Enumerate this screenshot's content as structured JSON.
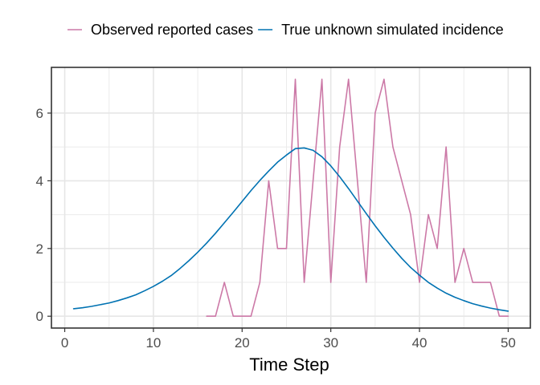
{
  "chart_data": {
    "type": "line",
    "title": "",
    "xlabel": "Time Step",
    "ylabel": "",
    "xlim": [
      -1.5,
      52.5
    ],
    "ylim": [
      -0.35,
      7.35
    ],
    "x_ticks": [
      0,
      10,
      20,
      30,
      40,
      50
    ],
    "y_ticks": [
      0,
      2,
      4,
      6
    ],
    "grid": true,
    "legend_position": "top",
    "series": [
      {
        "name": "Observed reported cases",
        "color": "#cc79a7",
        "x": [
          16,
          17,
          18,
          19,
          20,
          21,
          22,
          23,
          24,
          25,
          26,
          27,
          28,
          29,
          30,
          31,
          32,
          33,
          34,
          35,
          36,
          37,
          38,
          39,
          40,
          41,
          42,
          43,
          44,
          45,
          46,
          47,
          48,
          49,
          50
        ],
        "y": [
          0,
          0,
          1,
          0,
          0,
          0,
          1,
          4,
          2,
          2,
          7,
          1,
          4,
          7,
          1,
          5,
          7,
          4,
          1,
          6,
          7,
          5,
          4,
          3,
          1,
          3,
          2,
          5,
          1,
          2,
          1,
          1,
          1,
          0,
          0
        ]
      },
      {
        "name": "True unknown simulated incidence",
        "color": "#0072b2",
        "x": [
          1,
          2,
          3,
          4,
          5,
          6,
          7,
          8,
          9,
          10,
          11,
          12,
          13,
          14,
          15,
          16,
          17,
          18,
          19,
          20,
          21,
          22,
          23,
          24,
          25,
          26,
          27,
          28,
          29,
          30,
          31,
          32,
          33,
          34,
          35,
          36,
          37,
          38,
          39,
          40,
          41,
          42,
          43,
          44,
          45,
          46,
          47,
          48,
          49,
          50
        ],
        "y": [
          0.22,
          0.25,
          0.29,
          0.34,
          0.39,
          0.46,
          0.54,
          0.63,
          0.75,
          0.88,
          1.03,
          1.2,
          1.41,
          1.64,
          1.89,
          2.16,
          2.45,
          2.76,
          3.07,
          3.39,
          3.71,
          4.01,
          4.29,
          4.55,
          4.76,
          4.95,
          4.97,
          4.9,
          4.71,
          4.44,
          4.12,
          3.77,
          3.4,
          3.03,
          2.67,
          2.33,
          2.01,
          1.71,
          1.44,
          1.21,
          1.0,
          0.83,
          0.68,
          0.56,
          0.46,
          0.37,
          0.3,
          0.24,
          0.19,
          0.15
        ]
      }
    ]
  }
}
